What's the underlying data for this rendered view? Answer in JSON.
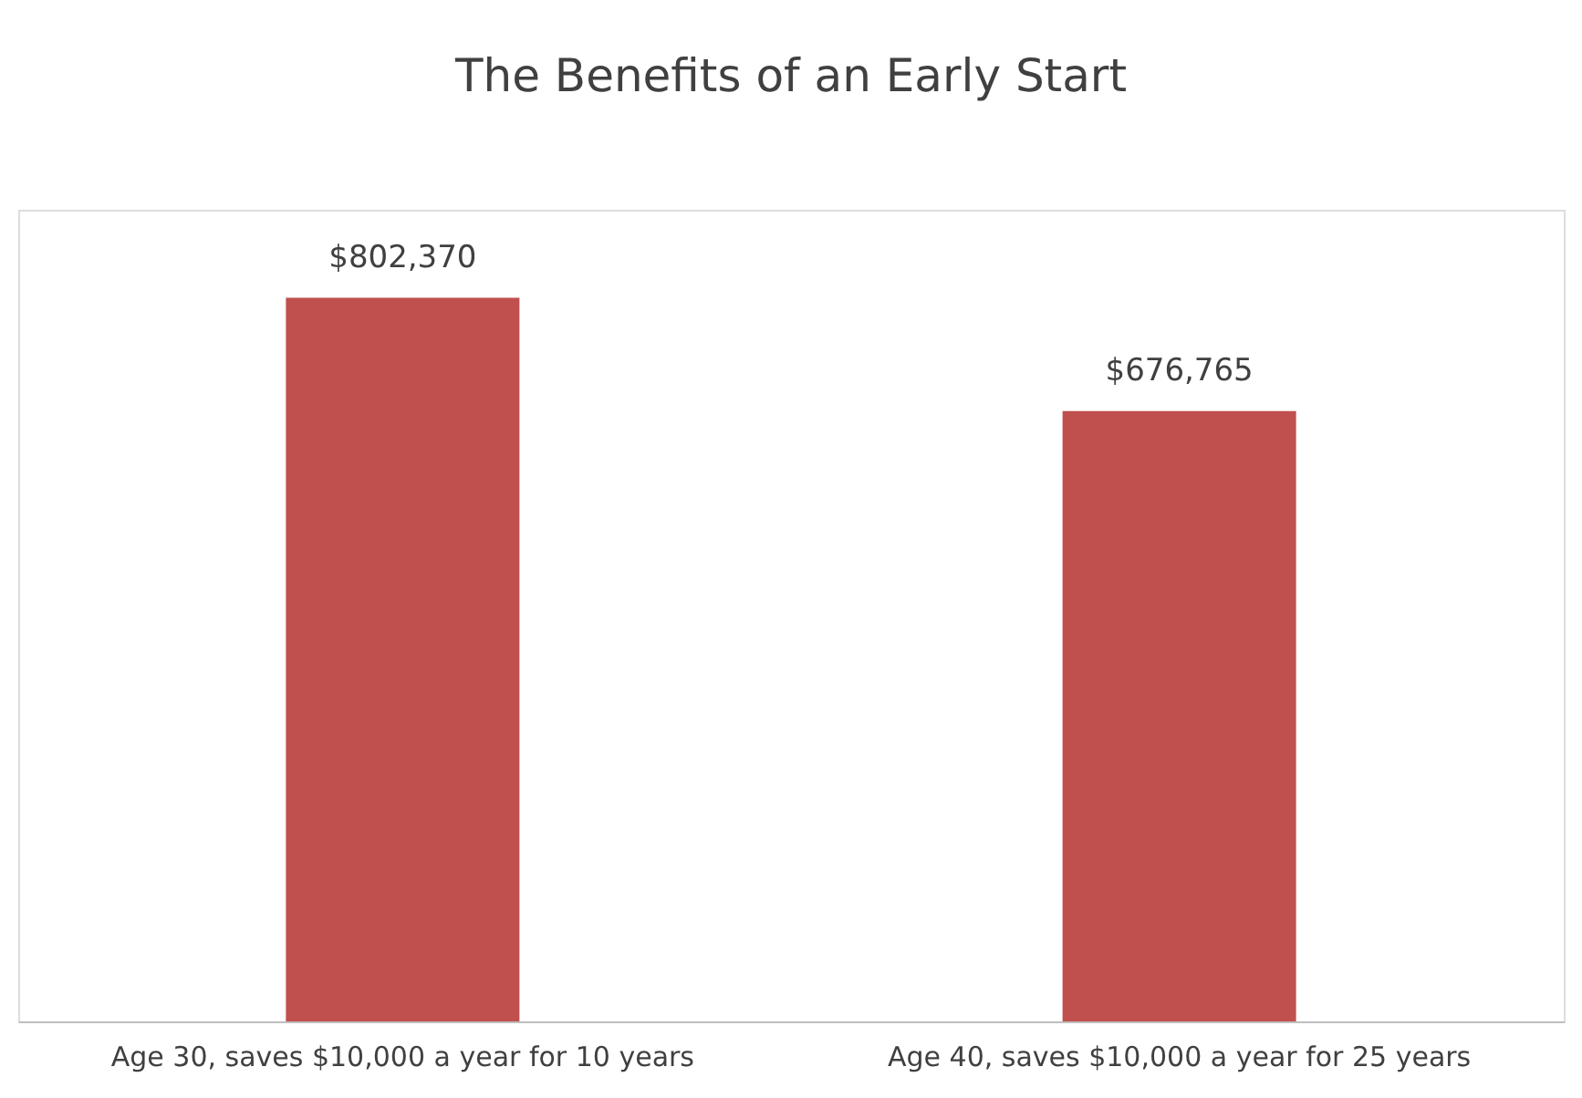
{
  "chart_data": {
    "type": "bar",
    "title": "The Benefits of an Early Start",
    "categories": [
      "Age 30, saves $10,000 a year for 10 years",
      "Age 40, saves $10,000 a year for 25 years"
    ],
    "series": [
      {
        "color": "#c0504d",
        "values": [
          802370,
          676765
        ],
        "value_labels": [
          "$802,370",
          "$676,765"
        ]
      }
    ],
    "grid": false,
    "legend": false
  }
}
